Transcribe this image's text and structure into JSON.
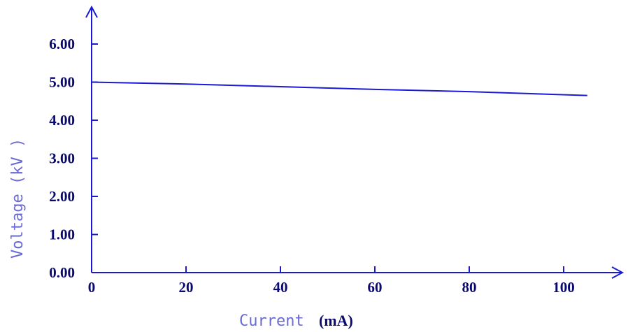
{
  "chart_data": {
    "type": "line",
    "title": "",
    "xlabel": "Current",
    "xlabel_unit": "(mA)",
    "ylabel": "Voltage (kV )",
    "xlim": [
      0,
      110
    ],
    "ylim": [
      0,
      6.8
    ],
    "x_ticks": [
      0,
      20,
      40,
      60,
      80,
      100
    ],
    "x_tick_labels": [
      "0",
      "20",
      "40",
      "60",
      "80",
      "100"
    ],
    "y_ticks": [
      0,
      1,
      2,
      3,
      4,
      5,
      6
    ],
    "y_tick_labels": [
      "0.00",
      "1.00",
      "2.00",
      "3.00",
      "4.00",
      "5.00",
      "6.00"
    ],
    "grid": false,
    "series": [
      {
        "color": "#1a1ad6",
        "x": [
          0,
          20,
          40,
          60,
          80,
          105
        ],
        "y": [
          5.0,
          4.95,
          4.88,
          4.81,
          4.75,
          4.65
        ]
      }
    ]
  },
  "colors": {
    "axis": "#1a1ad6",
    "line": "#1a1ad6",
    "tick_text": "#0a0a6e",
    "axis_title": "#6a6ad6"
  }
}
